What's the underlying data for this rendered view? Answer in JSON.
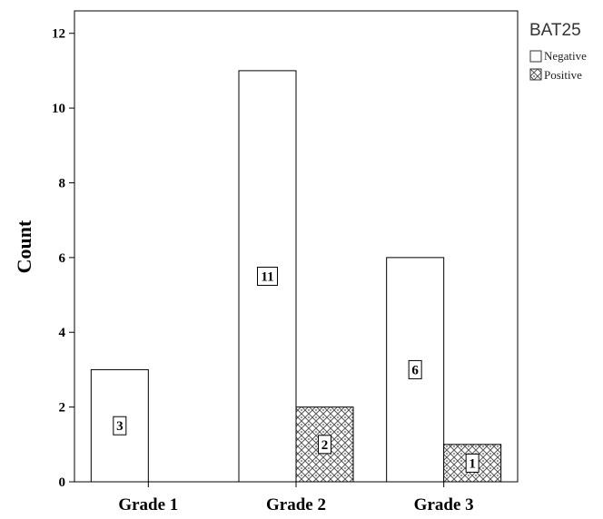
{
  "chart_data": {
    "type": "bar",
    "categories": [
      "Grade 1",
      "Grade 2",
      "Grade 3"
    ],
    "series": [
      {
        "name": "Negative",
        "values": [
          3,
          11,
          6
        ],
        "fill": "#ffffff"
      },
      {
        "name": "Positive",
        "values": [
          0,
          2,
          1
        ],
        "fill": "pattern-crosshatch"
      }
    ],
    "data_labels": [
      [
        "3",
        "11",
        "6"
      ],
      [
        "",
        "2",
        "1"
      ]
    ],
    "ylabel": "Count",
    "xlabel": "",
    "ylim": [
      0,
      12.6
    ],
    "yticks": [
      "0",
      "2",
      "4",
      "6",
      "8",
      "10",
      "12"
    ],
    "ytick_values": [
      0,
      2,
      4,
      6,
      8,
      10,
      12
    ],
    "legend": {
      "title": "BAT25",
      "placement": "top-right",
      "entries": [
        "Negative",
        "Positive"
      ]
    },
    "grid": false
  }
}
